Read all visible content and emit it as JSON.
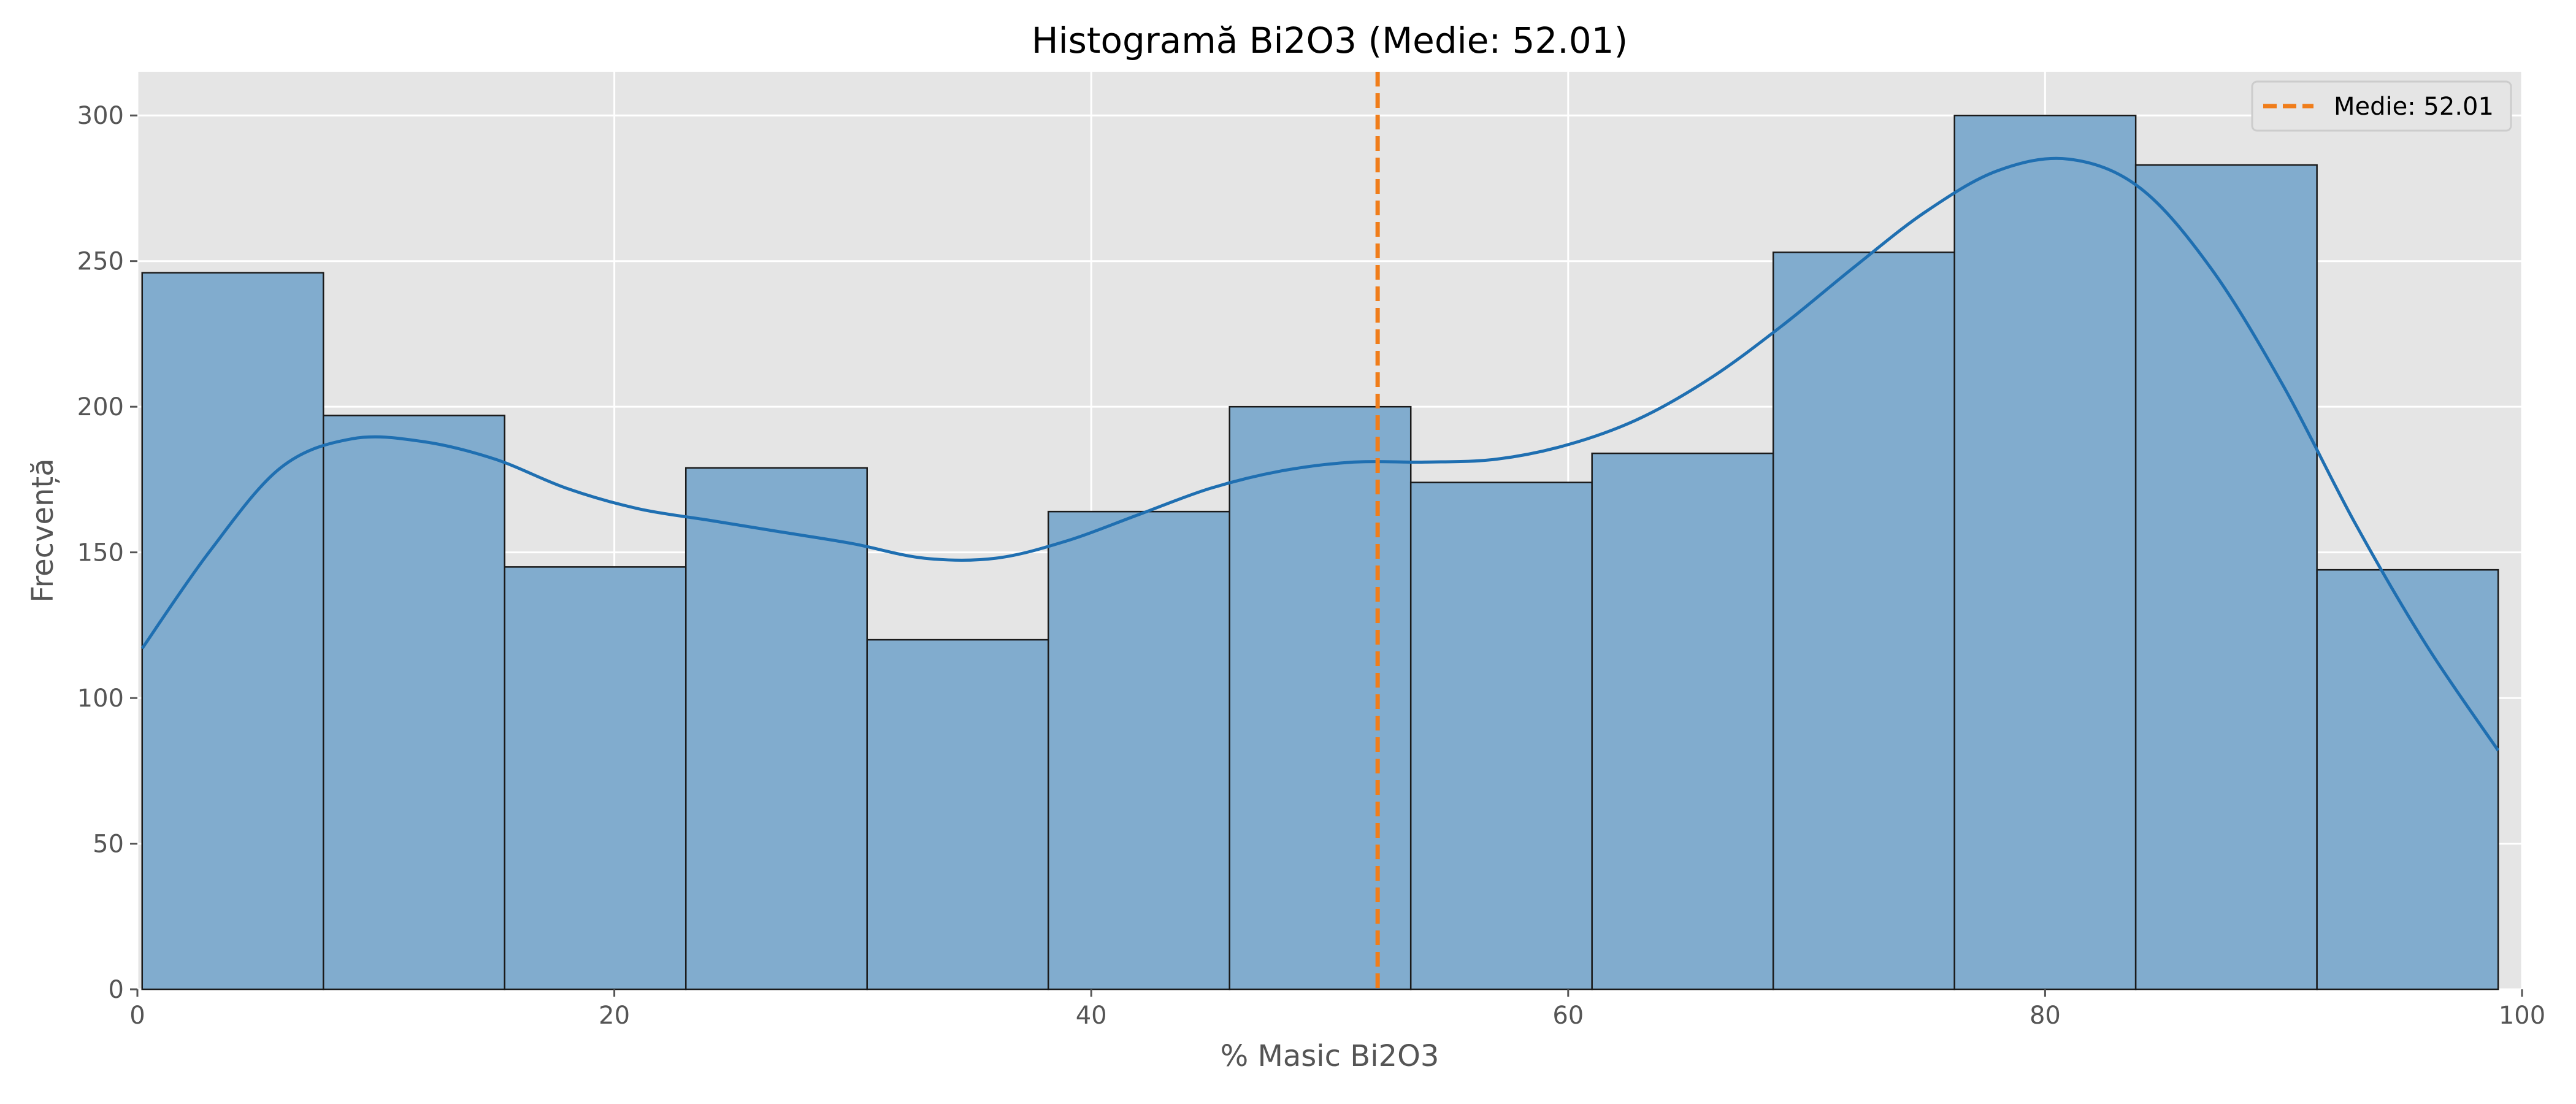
{
  "chart_data": {
    "type": "bar",
    "title": "Histogramă Bi2O3 (Medie: 52.01)",
    "xlabel": "% Masic Bi2O3",
    "ylabel": "Frecvență",
    "xlim": [
      0,
      100
    ],
    "ylim": [
      0,
      315
    ],
    "xticks": [
      0,
      20,
      40,
      60,
      80,
      100
    ],
    "yticks": [
      0,
      50,
      100,
      150,
      200,
      250,
      300
    ],
    "grid": true,
    "legend_position": "top-right",
    "bin_edges": [
      0.2,
      7.8,
      15.4,
      23.0,
      30.6,
      38.2,
      45.8,
      53.4,
      61.0,
      68.6,
      76.2,
      83.8,
      91.4,
      99.0
    ],
    "values": [
      246,
      197,
      145,
      179,
      120,
      164,
      200,
      174,
      184,
      253,
      300,
      283,
      144
    ],
    "kde": {
      "x": [
        0.2,
        3,
        6,
        9,
        12,
        15,
        18,
        21,
        24,
        27,
        30,
        33,
        36,
        39,
        42,
        45,
        48,
        51,
        54,
        57,
        60,
        63,
        66,
        69,
        72,
        75,
        78,
        81,
        84,
        87,
        90,
        93,
        96,
        99
      ],
      "y": [
        117,
        150,
        179,
        189,
        188,
        182,
        172,
        165,
        161,
        157,
        153,
        148,
        148,
        154,
        163,
        172,
        178,
        181,
        181,
        182,
        187,
        196,
        210,
        228,
        248,
        267,
        281,
        285,
        275,
        247,
        207,
        160,
        118,
        82
      ]
    },
    "mean": {
      "value": 52.01,
      "label": "Medie: 52.01"
    },
    "colors": {
      "bar_fill": "#81acce",
      "bar_edge": "#1a1a1a",
      "kde_line": "#1f6fb1",
      "mean_line": "#f07d1a",
      "plot_background": "#e5e5e5",
      "grid": "#ffffff"
    }
  }
}
